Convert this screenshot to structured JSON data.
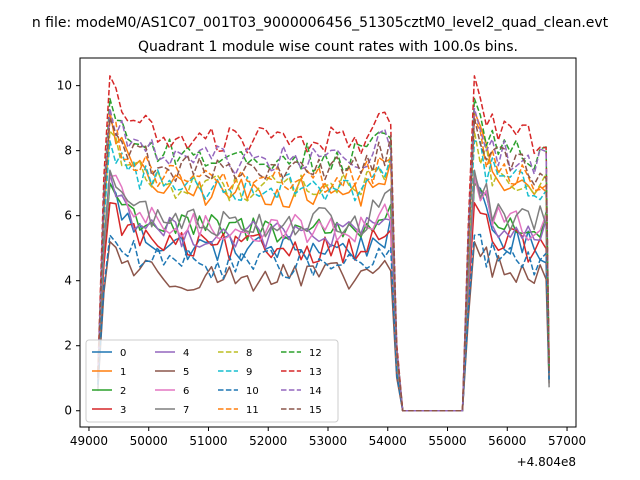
{
  "figure": {
    "suptitle": "n file: modeM0/AS1C07_001T03_9000006456_51305cztM0_level2_quad_clean.evt",
    "title": "Quadrant 1 module wise count rates with 100.0s bins.",
    "x_offset_label": "+4.804e8"
  },
  "chart_data": {
    "type": "line",
    "title": "Quadrant 1 module wise count rates with 100.0s bins.",
    "xlabel": "",
    "ylabel": "",
    "xlim": [
      48850,
      57150
    ],
    "ylim": [
      -0.5,
      10.85
    ],
    "x_ticks": [
      49000,
      50000,
      51000,
      52000,
      53000,
      54000,
      55000,
      56000,
      57000
    ],
    "y_ticks": [
      0,
      2,
      4,
      6,
      8,
      10
    ],
    "x_tick_labels": [
      "49000",
      "50000",
      "51000",
      "52000",
      "53000",
      "54000",
      "55000",
      "56000",
      "57000"
    ],
    "y_tick_labels": [
      "0",
      "2",
      "4",
      "6",
      "8",
      "10"
    ],
    "x_offset": "+4.804e8",
    "grid": false,
    "legend_position": "lower-left",
    "legend_columns": 4,
    "series": [
      {
        "name": "0",
        "color": "#1f77b4",
        "style": "solid",
        "first": 0.8,
        "level": 5.0,
        "peak": 7.0
      },
      {
        "name": "1",
        "color": "#ff7f0e",
        "style": "solid",
        "first": 1.1,
        "level": 6.7,
        "peak": 9.2
      },
      {
        "name": "2",
        "color": "#2ca02c",
        "style": "solid",
        "first": 1.0,
        "level": 5.6,
        "peak": 7.0
      },
      {
        "name": "3",
        "color": "#d62728",
        "style": "solid",
        "first": 0.9,
        "level": 5.0,
        "peak": 6.4
      },
      {
        "name": "4",
        "color": "#9467bd",
        "style": "solid",
        "first": 1.0,
        "level": 5.4,
        "peak": 7.3
      },
      {
        "name": "5",
        "color": "#8c564b",
        "style": "solid",
        "first": 0.7,
        "level": 4.1,
        "peak": 5.2
      },
      {
        "name": "6",
        "color": "#e377c2",
        "style": "solid",
        "first": 1.0,
        "level": 5.6,
        "peak": 7.2
      },
      {
        "name": "7",
        "color": "#7f7f7f",
        "style": "solid",
        "first": 0.6,
        "level": 5.8,
        "peak": 7.4
      },
      {
        "name": "8",
        "color": "#bcbd22",
        "style": "dashed",
        "first": 1.1,
        "level": 6.9,
        "peak": 8.6
      },
      {
        "name": "9",
        "color": "#17becf",
        "style": "dashed",
        "first": 1.0,
        "level": 6.9,
        "peak": 8.3
      },
      {
        "name": "10",
        "color": "#1f77b4",
        "style": "dashed",
        "first": 0.8,
        "level": 4.5,
        "peak": 5.4
      },
      {
        "name": "11",
        "color": "#ff7f0e",
        "style": "dashed",
        "first": 1.2,
        "level": 7.1,
        "peak": 9.0
      },
      {
        "name": "12",
        "color": "#2ca02c",
        "style": "dashed",
        "first": 1.1,
        "level": 7.8,
        "peak": 9.6
      },
      {
        "name": "13",
        "color": "#d62728",
        "style": "dashed",
        "first": 1.2,
        "level": 8.3,
        "peak": 10.3
      },
      {
        "name": "14",
        "color": "#9467bd",
        "style": "dashed",
        "first": 1.1,
        "level": 7.7,
        "peak": 9.3
      },
      {
        "name": "15",
        "color": "#8c564b",
        "style": "dashed",
        "first": 1.0,
        "level": 7.4,
        "peak": 9.0
      }
    ]
  }
}
